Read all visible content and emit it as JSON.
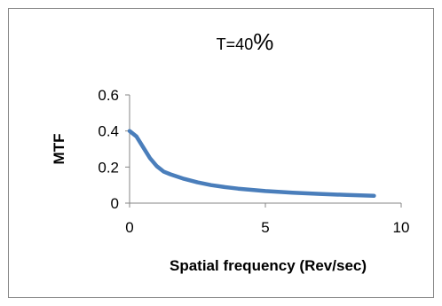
{
  "chart_data": {
    "type": "line",
    "title_prefix": "T=40",
    "title_suffix": "%",
    "xlabel": "Spatial frequency (Rev/sec)",
    "ylabel": "MTF",
    "xlim": [
      0,
      10
    ],
    "ylim": [
      0,
      0.6
    ],
    "x_ticks": [
      "0",
      "5",
      "10"
    ],
    "y_ticks": [
      "0",
      "0.2",
      "0.4",
      "0.6"
    ],
    "grid": false,
    "legend": "none",
    "series": [
      {
        "color": "#4a7ebb",
        "x": [
          0,
          0.25,
          0.5,
          0.75,
          1,
          1.25,
          1.5,
          2,
          2.5,
          3,
          3.5,
          4,
          5,
          6,
          7,
          8,
          9
        ],
        "y": [
          0.4,
          0.37,
          0.31,
          0.25,
          0.205,
          0.175,
          0.16,
          0.135,
          0.115,
          0.1,
          0.089,
          0.08,
          0.067,
          0.058,
          0.051,
          0.045,
          0.041
        ]
      }
    ]
  }
}
